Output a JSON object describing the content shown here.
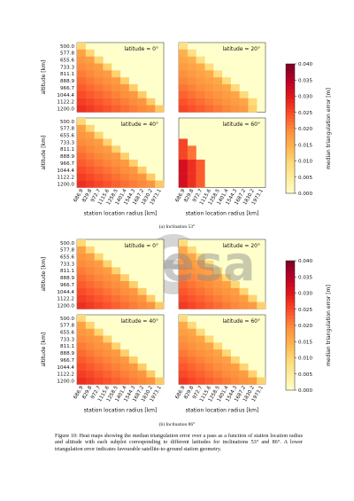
{
  "figure": {
    "subcaption_a": "(a) Inclination 53°",
    "subcaption_b": "(b) Inclination 86°",
    "caption": "Figure 10: Heat maps showing the median triangulation error over a pass as a function of station location radius and altitude with each subplot corresponding to different latitudes for inclinations 53° and 86°. A lower triangulation error indicates favourable satellite-to-ground station geometry.",
    "watermark": "esa"
  },
  "chart_data": [
    {
      "type": "heatmap",
      "group": "a",
      "xlabel": "station location radius [km]",
      "ylabel": "altitude [km]",
      "x_ticks": [
        "686.9",
        "829.8",
        "972.7",
        "1115.6",
        "1258.5",
        "1401.4",
        "1544.3",
        "1687.2",
        "1830.2",
        "1973.1"
      ],
      "y_ticks": [
        "500.0",
        "577.8",
        "655.6",
        "733.3",
        "811.1",
        "888.9",
        "966.7",
        "1044.4",
        "1122.2",
        "1200.0"
      ],
      "colorbar": {
        "label": "median triangulation error [m]",
        "range": [
          0.0,
          0.04
        ],
        "ticks": [
          "0.040",
          "0.035",
          "0.030",
          "0.025",
          "0.020",
          "0.015",
          "0.010",
          "0.005",
          "0.000"
        ],
        "colors": [
          "#ffffcc",
          "#ffeda0",
          "#fed976",
          "#feb24c",
          "#fd8d3c",
          "#fc4e2a",
          "#e31a1c",
          "#bd0026",
          "#800026"
        ]
      },
      "panels": [
        {
          "title": "latitude = 0°",
          "valid": [
            1,
            2,
            3,
            4,
            5,
            6,
            7,
            8,
            9,
            10
          ],
          "base": 0.016,
          "hot": 0.0
        },
        {
          "title": "latitude = 20°",
          "valid": [
            1,
            2,
            3,
            4,
            5,
            6,
            7,
            8,
            9,
            9
          ],
          "base": 0.014,
          "hot": 0.0
        },
        {
          "title": "latitude = 40°",
          "valid": [
            1,
            2,
            3,
            4,
            5,
            6,
            7,
            8,
            9,
            10
          ],
          "base": 0.016,
          "hot": 0.0
        },
        {
          "title": "latitude = 60°",
          "valid": [
            0,
            0,
            0,
            1,
            2,
            2,
            3,
            3,
            3,
            3
          ],
          "base": 0.026,
          "hot": 0.012
        }
      ]
    },
    {
      "type": "heatmap",
      "group": "b",
      "xlabel": "station location radius [km]",
      "ylabel": "altitude [km]",
      "x_ticks": [
        "686.9",
        "829.8",
        "972.7",
        "1115.6",
        "1258.5",
        "1401.4",
        "1544.3",
        "1687.2",
        "1830.2",
        "1973.1"
      ],
      "y_ticks": [
        "500.0",
        "577.8",
        "655.6",
        "733.3",
        "811.1",
        "888.9",
        "966.7",
        "1044.4",
        "1122.2",
        "1200.0"
      ],
      "colorbar": {
        "label": "median triangulation error [m]",
        "range": [
          0.0,
          0.04
        ],
        "ticks": [
          "0.040",
          "0.035",
          "0.030",
          "0.025",
          "0.020",
          "0.015",
          "0.010",
          "0.005",
          "0.000"
        ],
        "colors": [
          "#ffffcc",
          "#ffeda0",
          "#fed976",
          "#feb24c",
          "#fd8d3c",
          "#fc4e2a",
          "#e31a1c",
          "#bd0026",
          "#800026"
        ]
      },
      "panels": [
        {
          "title": "latitude = 0°",
          "valid": [
            1,
            2,
            3,
            4,
            5,
            6,
            7,
            8,
            9,
            10
          ],
          "base": 0.016,
          "hot": 0.0
        },
        {
          "title": "latitude = 20°",
          "valid": [
            1,
            2,
            3,
            4,
            5,
            6,
            7,
            8,
            9,
            10
          ],
          "base": 0.015,
          "hot": 0.0
        },
        {
          "title": "latitude = 40°",
          "valid": [
            1,
            2,
            3,
            4,
            5,
            6,
            7,
            8,
            9,
            10
          ],
          "base": 0.016,
          "hot": 0.0
        },
        {
          "title": "latitude = 60°",
          "valid": [
            1,
            2,
            3,
            4,
            5,
            6,
            7,
            8,
            9,
            10
          ],
          "base": 0.015,
          "hot": 0.0
        }
      ]
    }
  ]
}
